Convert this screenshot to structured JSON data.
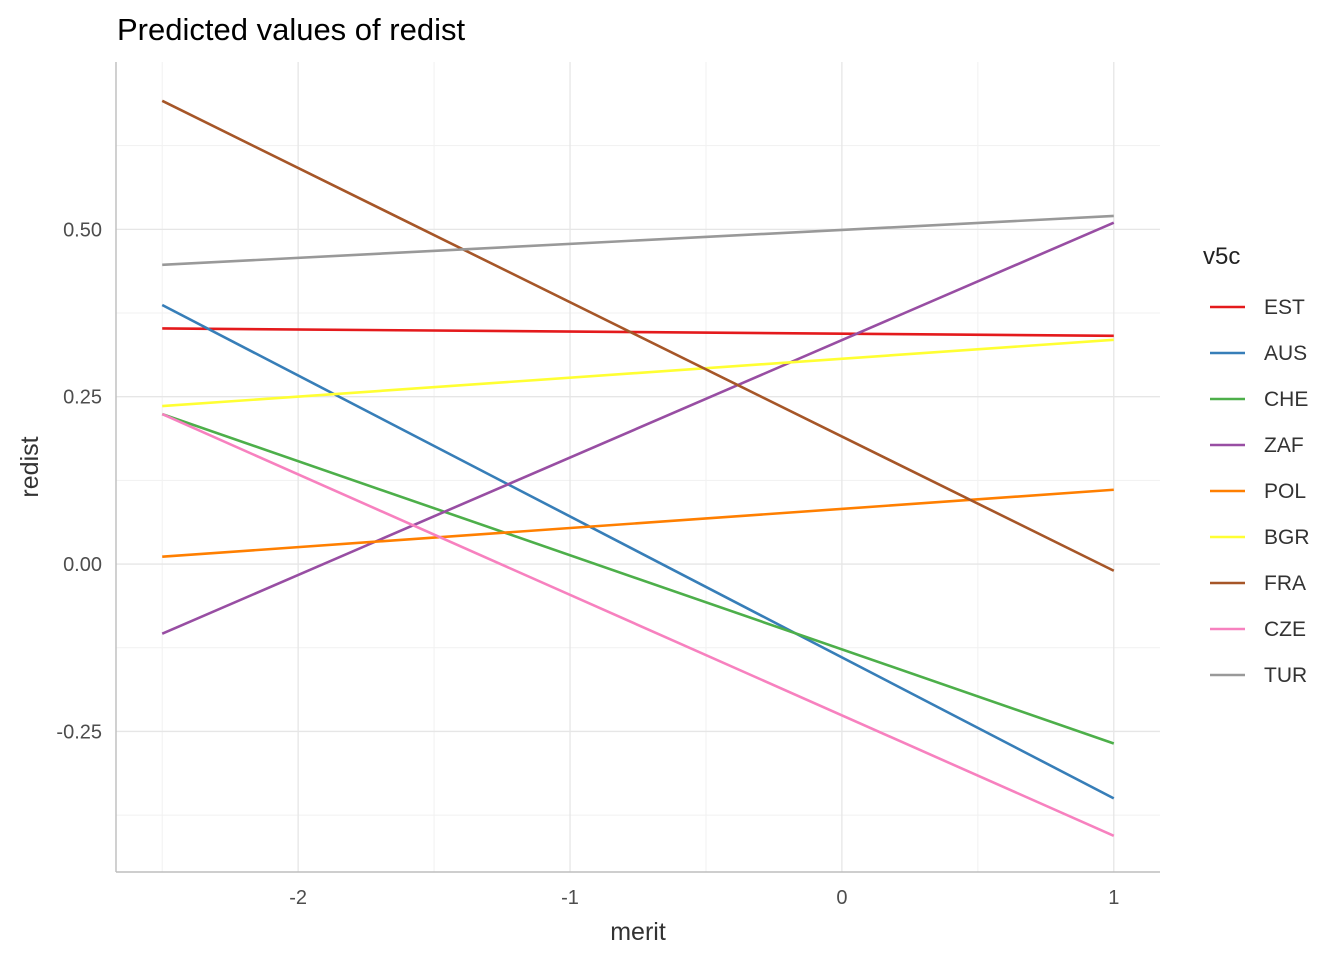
{
  "chart_data": {
    "type": "line",
    "title": "Predicted values of redist",
    "xlabel": "merit",
    "ylabel": "redist",
    "xlim": [
      -2.67,
      1.17
    ],
    "ylim": [
      -0.46,
      0.75
    ],
    "x_ticks": [
      -2,
      -1,
      0,
      1
    ],
    "x_tick_labels": [
      "-2",
      "-1",
      "0",
      "1"
    ],
    "y_ticks": [
      -0.25,
      0.0,
      0.25,
      0.5
    ],
    "y_tick_labels": [
      "-0.25",
      "0.00",
      "0.25",
      "0.50"
    ],
    "grid": true,
    "legend": {
      "title": "v5c",
      "position": "right"
    },
    "series": [
      {
        "name": "EST",
        "color": "#e41a1c",
        "x": [
          -2.5,
          1
        ],
        "y": [
          0.352,
          0.341
        ]
      },
      {
        "name": "AUS",
        "color": "#377eb8",
        "x": [
          -2.5,
          1
        ],
        "y": [
          0.387,
          -0.35
        ]
      },
      {
        "name": "CHE",
        "color": "#4daf4a",
        "x": [
          -2.5,
          1
        ],
        "y": [
          0.224,
          -0.268
        ]
      },
      {
        "name": "ZAF",
        "color": "#984ea3",
        "x": [
          -2.5,
          1
        ],
        "y": [
          -0.104,
          0.51
        ]
      },
      {
        "name": "POL",
        "color": "#ff7f00",
        "x": [
          -2.5,
          1
        ],
        "y": [
          0.011,
          0.111
        ]
      },
      {
        "name": "BGR",
        "color": "#ffff33",
        "x": [
          -2.5,
          1
        ],
        "y": [
          0.236,
          0.335
        ]
      },
      {
        "name": "FRA",
        "color": "#a65628",
        "x": [
          -2.5,
          1
        ],
        "y": [
          0.692,
          -0.01
        ]
      },
      {
        "name": "CZE",
        "color": "#f781bf",
        "x": [
          -2.5,
          1
        ],
        "y": [
          0.224,
          -0.406
        ]
      },
      {
        "name": "TUR",
        "color": "#999999",
        "x": [
          -2.5,
          1
        ],
        "y": [
          0.447,
          0.52
        ]
      }
    ]
  }
}
